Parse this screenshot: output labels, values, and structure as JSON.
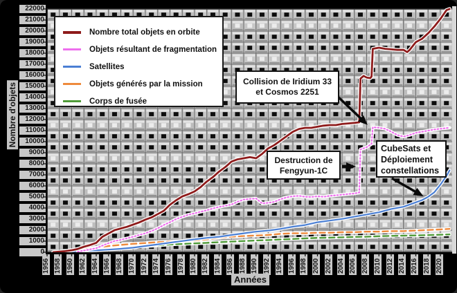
{
  "figure": {
    "y_axis_title": "Nombre d'objets",
    "x_axis_title": "Années"
  },
  "annotations": {
    "iridium": {
      "line1": "Collision de Iridium 33",
      "line2": "et Cosmos 2251"
    },
    "fengyun": {
      "line1": "Destruction de",
      "line2": "Fengyun-1C"
    },
    "cubesats": {
      "line1": "CubeSats et",
      "line2": "Déploiement",
      "line3": "constellations"
    }
  },
  "chart_data": {
    "type": "line",
    "title": "",
    "xlabel": "Années",
    "ylabel": "Nombre d'objets",
    "xlim": [
      1956,
      2021.8
    ],
    "ylim": [
      0,
      22000
    ],
    "grid": true,
    "legend_position": "top-left",
    "x_ticks": [
      1956,
      1958,
      1960,
      1962,
      1964,
      1966,
      1968,
      1970,
      1972,
      1974,
      1976,
      1978,
      1980,
      1982,
      1984,
      1986,
      1988,
      1990,
      1992,
      1994,
      1996,
      1998,
      2000,
      2002,
      2004,
      2006,
      2008,
      2010,
      2012,
      2014,
      2016,
      2018,
      2020
    ],
    "y_tick_step": 1000,
    "series": [
      {
        "name": "Corps de fusée",
        "color": "#4f9b38",
        "dash": "8 5",
        "width": 2.4,
        "points": [
          [
            1958,
            10
          ],
          [
            1960,
            60
          ],
          [
            1962,
            130
          ],
          [
            1964,
            210
          ],
          [
            1966,
            300
          ],
          [
            1968,
            380
          ],
          [
            1970,
            460
          ],
          [
            1972,
            550
          ],
          [
            1974,
            620
          ],
          [
            1976,
            700
          ],
          [
            1978,
            750
          ],
          [
            1980,
            800
          ],
          [
            1982,
            850
          ],
          [
            1984,
            910
          ],
          [
            1986,
            960
          ],
          [
            1988,
            1010
          ],
          [
            1990,
            1060
          ],
          [
            1992,
            1100
          ],
          [
            1994,
            1150
          ],
          [
            1996,
            1200
          ],
          [
            1998,
            1250
          ],
          [
            2000,
            1300
          ],
          [
            2002,
            1320
          ],
          [
            2004,
            1350
          ],
          [
            2006,
            1380
          ],
          [
            2008,
            1400
          ],
          [
            2010,
            1450
          ],
          [
            2012,
            1480
          ],
          [
            2014,
            1500
          ],
          [
            2016,
            1520
          ],
          [
            2018,
            1550
          ],
          [
            2020,
            1580
          ],
          [
            2021.5,
            1610
          ]
        ]
      },
      {
        "name": "Objets générés par la mission",
        "color": "#ee8a3c",
        "dash": "8 5",
        "width": 2.4,
        "points": [
          [
            1958,
            20
          ],
          [
            1960,
            110
          ],
          [
            1962,
            260
          ],
          [
            1964,
            410
          ],
          [
            1966,
            560
          ],
          [
            1968,
            660
          ],
          [
            1970,
            760
          ],
          [
            1972,
            830
          ],
          [
            1974,
            910
          ],
          [
            1976,
            960
          ],
          [
            1978,
            1010
          ],
          [
            1980,
            1060
          ],
          [
            1982,
            1160
          ],
          [
            1984,
            1310
          ],
          [
            1986,
            1410
          ],
          [
            1988,
            1460
          ],
          [
            1990,
            1510
          ],
          [
            1992,
            1560
          ],
          [
            1994,
            1660
          ],
          [
            1996,
            1710
          ],
          [
            1998,
            1710
          ],
          [
            2000,
            1760
          ],
          [
            2002,
            1760
          ],
          [
            2004,
            1810
          ],
          [
            2006,
            1810
          ],
          [
            2008,
            1860
          ],
          [
            2010,
            1860
          ],
          [
            2012,
            1910
          ],
          [
            2014,
            1910
          ],
          [
            2016,
            1960
          ],
          [
            2018,
            2010
          ],
          [
            2020,
            2060
          ],
          [
            2021.5,
            2110
          ]
        ]
      },
      {
        "name": "Satellites",
        "color": "#4a7fd4",
        "dash": "",
        "width": 2.2,
        "points": [
          [
            1957,
            10
          ],
          [
            1960,
            60
          ],
          [
            1962,
            110
          ],
          [
            1964,
            170
          ],
          [
            1966,
            240
          ],
          [
            1968,
            310
          ],
          [
            1970,
            410
          ],
          [
            1972,
            560
          ],
          [
            1974,
            710
          ],
          [
            1976,
            860
          ],
          [
            1978,
            1010
          ],
          [
            1980,
            1160
          ],
          [
            1982,
            1300
          ],
          [
            1984,
            1400
          ],
          [
            1986,
            1560
          ],
          [
            1988,
            1710
          ],
          [
            1990,
            1860
          ],
          [
            1992,
            1960
          ],
          [
            1994,
            2110
          ],
          [
            1996,
            2310
          ],
          [
            1998,
            2460
          ],
          [
            2000,
            2710
          ],
          [
            2002,
            2860
          ],
          [
            2004,
            3010
          ],
          [
            2006,
            3210
          ],
          [
            2008,
            3410
          ],
          [
            2010,
            3610
          ],
          [
            2012,
            3910
          ],
          [
            2014,
            4110
          ],
          [
            2016,
            4510
          ],
          [
            2017,
            4710
          ],
          [
            2018,
            5010
          ],
          [
            2019,
            5410
          ],
          [
            2020,
            6110
          ],
          [
            2021,
            6910
          ],
          [
            2021.5,
            7400
          ]
        ]
      },
      {
        "name": "Objets résultant de fragmentation",
        "color": "#ee6fee",
        "dash": "1.5 3",
        "width": 2.2,
        "points": [
          [
            1961,
            50
          ],
          [
            1962,
            150
          ],
          [
            1963,
            260
          ],
          [
            1964,
            360
          ],
          [
            1965,
            600
          ],
          [
            1966,
            820
          ],
          [
            1967,
            1020
          ],
          [
            1968,
            1120
          ],
          [
            1969,
            1260
          ],
          [
            1970,
            1400
          ],
          [
            1971,
            1560
          ],
          [
            1972,
            1720
          ],
          [
            1973,
            1920
          ],
          [
            1974,
            2160
          ],
          [
            1975,
            2460
          ],
          [
            1976,
            2720
          ],
          [
            1977,
            3000
          ],
          [
            1978,
            3200
          ],
          [
            1979,
            3400
          ],
          [
            1980,
            3520
          ],
          [
            1981,
            3660
          ],
          [
            1982,
            3800
          ],
          [
            1983,
            3960
          ],
          [
            1984,
            4100
          ],
          [
            1985,
            4200
          ],
          [
            1986,
            4320
          ],
          [
            1987,
            4560
          ],
          [
            1988,
            4760
          ],
          [
            1989,
            4820
          ],
          [
            1990,
            4860
          ],
          [
            1991,
            4420
          ],
          [
            1992,
            4470
          ],
          [
            1993,
            4560
          ],
          [
            1994,
            4800
          ],
          [
            1995,
            4960
          ],
          [
            1996,
            5060
          ],
          [
            1997,
            5100
          ],
          [
            1998,
            5010
          ],
          [
            1999,
            5000
          ],
          [
            2000,
            5060
          ],
          [
            2001,
            5010
          ],
          [
            2002,
            5100
          ],
          [
            2003,
            5150
          ],
          [
            2004,
            5200
          ],
          [
            2005,
            5260
          ],
          [
            2006,
            5310
          ],
          [
            2006.8,
            5400
          ],
          [
            2007,
            9300
          ],
          [
            2007.5,
            9400
          ],
          [
            2008,
            9500
          ],
          [
            2008.8,
            9800
          ],
          [
            2009,
            11300
          ],
          [
            2010,
            11260
          ],
          [
            2011,
            11160
          ],
          [
            2012,
            10900
          ],
          [
            2013,
            10600
          ],
          [
            2014,
            10460
          ],
          [
            2015,
            10600
          ],
          [
            2016,
            10800
          ],
          [
            2017,
            10900
          ],
          [
            2018,
            11000
          ],
          [
            2019,
            11100
          ],
          [
            2020,
            11160
          ],
          [
            2021.5,
            11260
          ]
        ]
      },
      {
        "name": "Nombre total objets en orbite",
        "color": "#8e1b1b",
        "dash": "",
        "width": 2.8,
        "points": [
          [
            1957,
            0
          ],
          [
            1958,
            50
          ],
          [
            1959,
            100
          ],
          [
            1960,
            180
          ],
          [
            1961,
            300
          ],
          [
            1962,
            500
          ],
          [
            1963,
            650
          ],
          [
            1964,
            850
          ],
          [
            1965,
            1400
          ],
          [
            1966,
            1700
          ],
          [
            1967,
            2000
          ],
          [
            1968,
            2150
          ],
          [
            1969,
            2300
          ],
          [
            1970,
            2500
          ],
          [
            1971,
            2700
          ],
          [
            1972,
            2950
          ],
          [
            1973,
            3150
          ],
          [
            1974,
            3450
          ],
          [
            1975,
            3750
          ],
          [
            1976,
            4300
          ],
          [
            1977,
            4700
          ],
          [
            1978,
            5050
          ],
          [
            1979,
            5250
          ],
          [
            1980,
            5500
          ],
          [
            1981,
            5900
          ],
          [
            1982,
            6400
          ],
          [
            1983,
            6800
          ],
          [
            1984,
            7300
          ],
          [
            1985,
            7700
          ],
          [
            1986,
            8200
          ],
          [
            1987,
            8400
          ],
          [
            1988,
            8500
          ],
          [
            1989,
            8600
          ],
          [
            1990,
            8500
          ],
          [
            1991,
            8900
          ],
          [
            1992,
            9400
          ],
          [
            1993,
            9700
          ],
          [
            1994,
            10100
          ],
          [
            1995,
            10500
          ],
          [
            1996,
            10900
          ],
          [
            1997,
            11150
          ],
          [
            1998,
            11250
          ],
          [
            1999,
            11250
          ],
          [
            2000,
            11350
          ],
          [
            2001,
            11450
          ],
          [
            2002,
            11500
          ],
          [
            2003,
            11500
          ],
          [
            2004,
            11600
          ],
          [
            2005,
            11650
          ],
          [
            2006,
            11700
          ],
          [
            2006.8,
            11750
          ],
          [
            2007,
            15700
          ],
          [
            2007.5,
            15950
          ],
          [
            2008,
            15800
          ],
          [
            2008.6,
            15750
          ],
          [
            2008.8,
            15900
          ],
          [
            2009,
            18400
          ],
          [
            2010,
            18500
          ],
          [
            2011,
            18400
          ],
          [
            2012,
            18350
          ],
          [
            2013,
            18300
          ],
          [
            2014,
            18300
          ],
          [
            2014.6,
            18100
          ],
          [
            2015,
            18300
          ],
          [
            2016,
            19000
          ],
          [
            2017,
            19300
          ],
          [
            2018,
            19800
          ],
          [
            2019,
            20400
          ],
          [
            2020,
            21100
          ],
          [
            2021,
            21900
          ],
          [
            2021.5,
            22000
          ]
        ]
      }
    ],
    "events": [
      {
        "label": "Destruction de Fengyun-1C",
        "year": 2007
      },
      {
        "label": "Collision de Iridium 33 et Cosmos 2251",
        "year": 2009
      },
      {
        "label": "CubeSats et Déploiement constellations",
        "year": 2018
      }
    ]
  }
}
